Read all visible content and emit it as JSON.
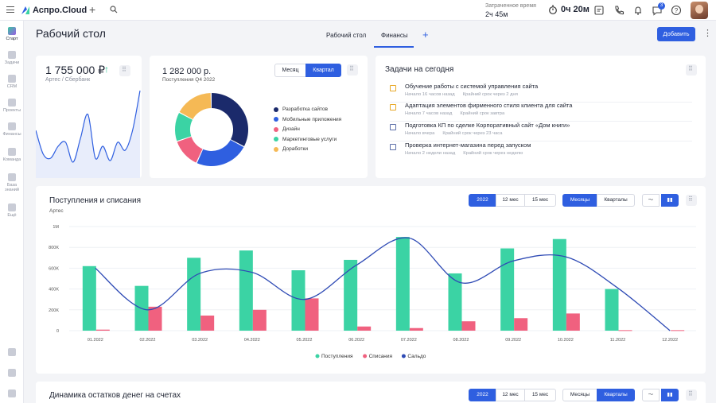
{
  "app": {
    "name": "Аспро.Cloud"
  },
  "topbar": {
    "spent_label": "Затраченное время",
    "spent_value": "2ч 45м",
    "timer_value": "0ч 20м",
    "notifications_badge": "3"
  },
  "sidebar": {
    "items": [
      {
        "label": "Старт",
        "icon": "start-icon"
      },
      {
        "label": "Задачи",
        "icon": "tasks-icon"
      },
      {
        "label": "CRM",
        "icon": "crm-icon"
      },
      {
        "label": "Проекты",
        "icon": "projects-icon"
      },
      {
        "label": "Финансы",
        "icon": "finance-icon"
      },
      {
        "label": "Команда",
        "icon": "team-icon"
      },
      {
        "label": "База знаний",
        "icon": "knowledge-icon"
      },
      {
        "label": "Ещё",
        "icon": "more-icon"
      }
    ]
  },
  "header": {
    "title": "Рабочий стол",
    "tabs": [
      "Рабочий стол",
      "Финансы"
    ],
    "active_tab": "Финансы",
    "add_button": "Добавить"
  },
  "balance_card": {
    "amount": "1 755 000 ₽",
    "subtitle": "Артес / Сбербанк",
    "sparkline": [
      60,
      30,
      25,
      40,
      45,
      20,
      50,
      80,
      25,
      40,
      22,
      45,
      35,
      60,
      110
    ]
  },
  "income_card": {
    "amount": "1 282 000 р.",
    "subtitle": "Поступления Q4 2022",
    "toggle": [
      "Месяц",
      "Квартал"
    ],
    "toggle_active": "Квартал",
    "slices": [
      {
        "label": "Разработка сайтов",
        "value": 33,
        "color": "#1b2a6b"
      },
      {
        "label": "Мобильные приложения",
        "value": 24,
        "color": "#2f5fe0"
      },
      {
        "label": "Дизайн",
        "value": 13,
        "color": "#f0617f"
      },
      {
        "label": "Маркетинговые услуги",
        "value": 13,
        "color": "#3bd3a4"
      },
      {
        "label": "Доработки",
        "value": 17,
        "color": "#f5b955"
      }
    ]
  },
  "tasks_card": {
    "title": "Задачи на сегодня",
    "items": [
      {
        "title": "Обучение работы с системой управления сайта",
        "start": "Начало 16 часов назад",
        "deadline": "Крайний срок через 2 дня",
        "color": "yellow"
      },
      {
        "title": "Адаптация элементов фирменного стиля клиента для сайта",
        "start": "Начало 7 часов назад",
        "deadline": "Крайний срок завтра",
        "color": "yellow"
      },
      {
        "title": "Подготовка КП по сделке Корпоративный сайт «Дом книги»",
        "start": "Начало вчера",
        "deadline": "Крайний срок через 23 часа",
        "color": "blue"
      },
      {
        "title": "Проверка интернет-магазина перед запуском",
        "start": "Начало 2 недели назад",
        "deadline": "Крайний срок через неделю",
        "color": "blue"
      }
    ]
  },
  "cashflow_card": {
    "title": "Поступления и списания",
    "subtitle": "Артес",
    "period_buttons": [
      "2022",
      "12 мес",
      "15 мес"
    ],
    "period_active": "2022",
    "group_buttons": [
      "Месяцы",
      "Кварталы"
    ],
    "group_active": "Месяцы"
  },
  "bottom_card": {
    "title": "Динамика остатков денег на счетах",
    "period_buttons": [
      "2022",
      "12 мес",
      "15 мес"
    ],
    "period_active": "2022",
    "group_buttons": [
      "Месяцы",
      "Кварталы"
    ],
    "group_active": "Кварталы"
  },
  "chart_data": {
    "type": "bar",
    "categories": [
      "01.2022",
      "02.2022",
      "03.2022",
      "04.2022",
      "05.2022",
      "06.2022",
      "07.2022",
      "08.2022",
      "09.2022",
      "10.2022",
      "11.2022",
      "12.2022"
    ],
    "y_ticks": [
      "0",
      "200K",
      "400K",
      "600K",
      "800K",
      "1M"
    ],
    "ylim": [
      0,
      1000000
    ],
    "series": [
      {
        "name": "Поступления",
        "type": "bar",
        "color": "#3bd3a4",
        "values": [
          620000,
          430000,
          700000,
          770000,
          580000,
          680000,
          900000,
          550000,
          790000,
          880000,
          400000,
          0
        ]
      },
      {
        "name": "Списания",
        "type": "bar",
        "color": "#f0617f",
        "values": [
          10000,
          230000,
          145000,
          200000,
          310000,
          40000,
          25000,
          90000,
          120000,
          165000,
          5000,
          5000
        ]
      },
      {
        "name": "Сальдо",
        "type": "line",
        "color": "#2f4bb5",
        "values": [
          600000,
          200000,
          550000,
          560000,
          300000,
          630000,
          890000,
          460000,
          670000,
          710000,
          410000,
          0
        ]
      }
    ]
  }
}
